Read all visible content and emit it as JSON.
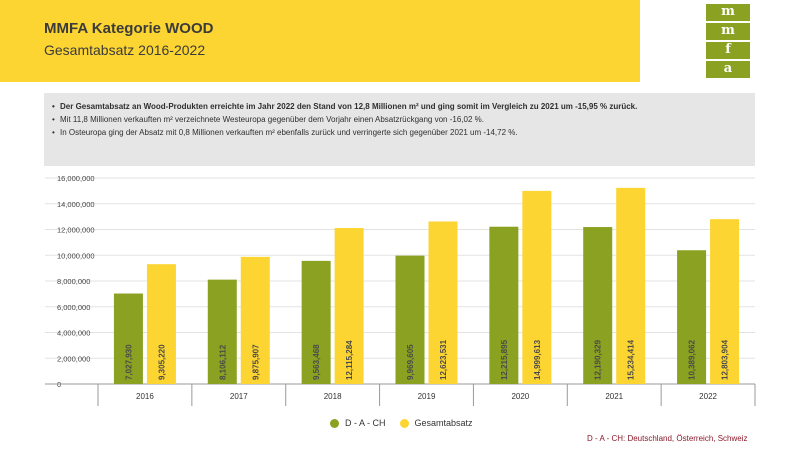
{
  "header": {
    "title": "MMFA Kategorie WOOD",
    "subtitle": "Gesamtabsatz 2016-2022"
  },
  "logo": {
    "letters": [
      "m",
      "m",
      "f",
      "a"
    ]
  },
  "notes": [
    "Der Gesamtabsatz an Wood-Produkten erreichte im Jahr 2022 den Stand von 12,8 Millionen m² und ging somit im Vergleich zu 2021 um -15,95 % zurück.",
    "Mit 11,8 Millionen verkauften m² verzeichnete Westeuropa gegenüber dem Vorjahr einen Absatzrückgang von -16,02 %.",
    "In Osteuropa ging der Absatz mit 0,8 Millionen verkauften m² ebenfalls zurück und verringerte sich gegenüber 2021 um -14,72 %."
  ],
  "chart_data": {
    "type": "bar",
    "categories": [
      "2016",
      "2017",
      "2018",
      "2019",
      "2020",
      "2021",
      "2022"
    ],
    "series": [
      {
        "name": "D - A - CH",
        "color": "#8aa121",
        "values": [
          7027930,
          8106112,
          9563468,
          9969605,
          12215895,
          12190329,
          10389062
        ],
        "labels": [
          "7,027,930",
          "8,106,112",
          "9,563,468",
          "9,969,605",
          "12,215,895",
          "12,190,329",
          "10,389,062"
        ]
      },
      {
        "name": "Gesamtabsatz",
        "color": "#fcd532",
        "values": [
          9305220,
          9875907,
          12115284,
          12623531,
          14999613,
          15234414,
          12803904
        ],
        "labels": [
          "9,305,220",
          "9,875,907",
          "12,115,284",
          "12,623,531",
          "14,999,613",
          "15,234,414",
          "12,803,904"
        ]
      }
    ],
    "yticks": [
      0,
      2000000,
      4000000,
      6000000,
      8000000,
      10000000,
      12000000,
      14000000,
      16000000
    ],
    "ytick_labels": [
      "0",
      "2,000,000",
      "4,000,000",
      "6,000,000",
      "8,000,000",
      "10,000,000",
      "12,000,000",
      "14,000,000",
      "16,000,000"
    ],
    "ylim": [
      0,
      16000000
    ],
    "grid": true,
    "legend": "bottom"
  },
  "footer": "D - A - CH:   Deutschland, Österreich, Schweiz"
}
